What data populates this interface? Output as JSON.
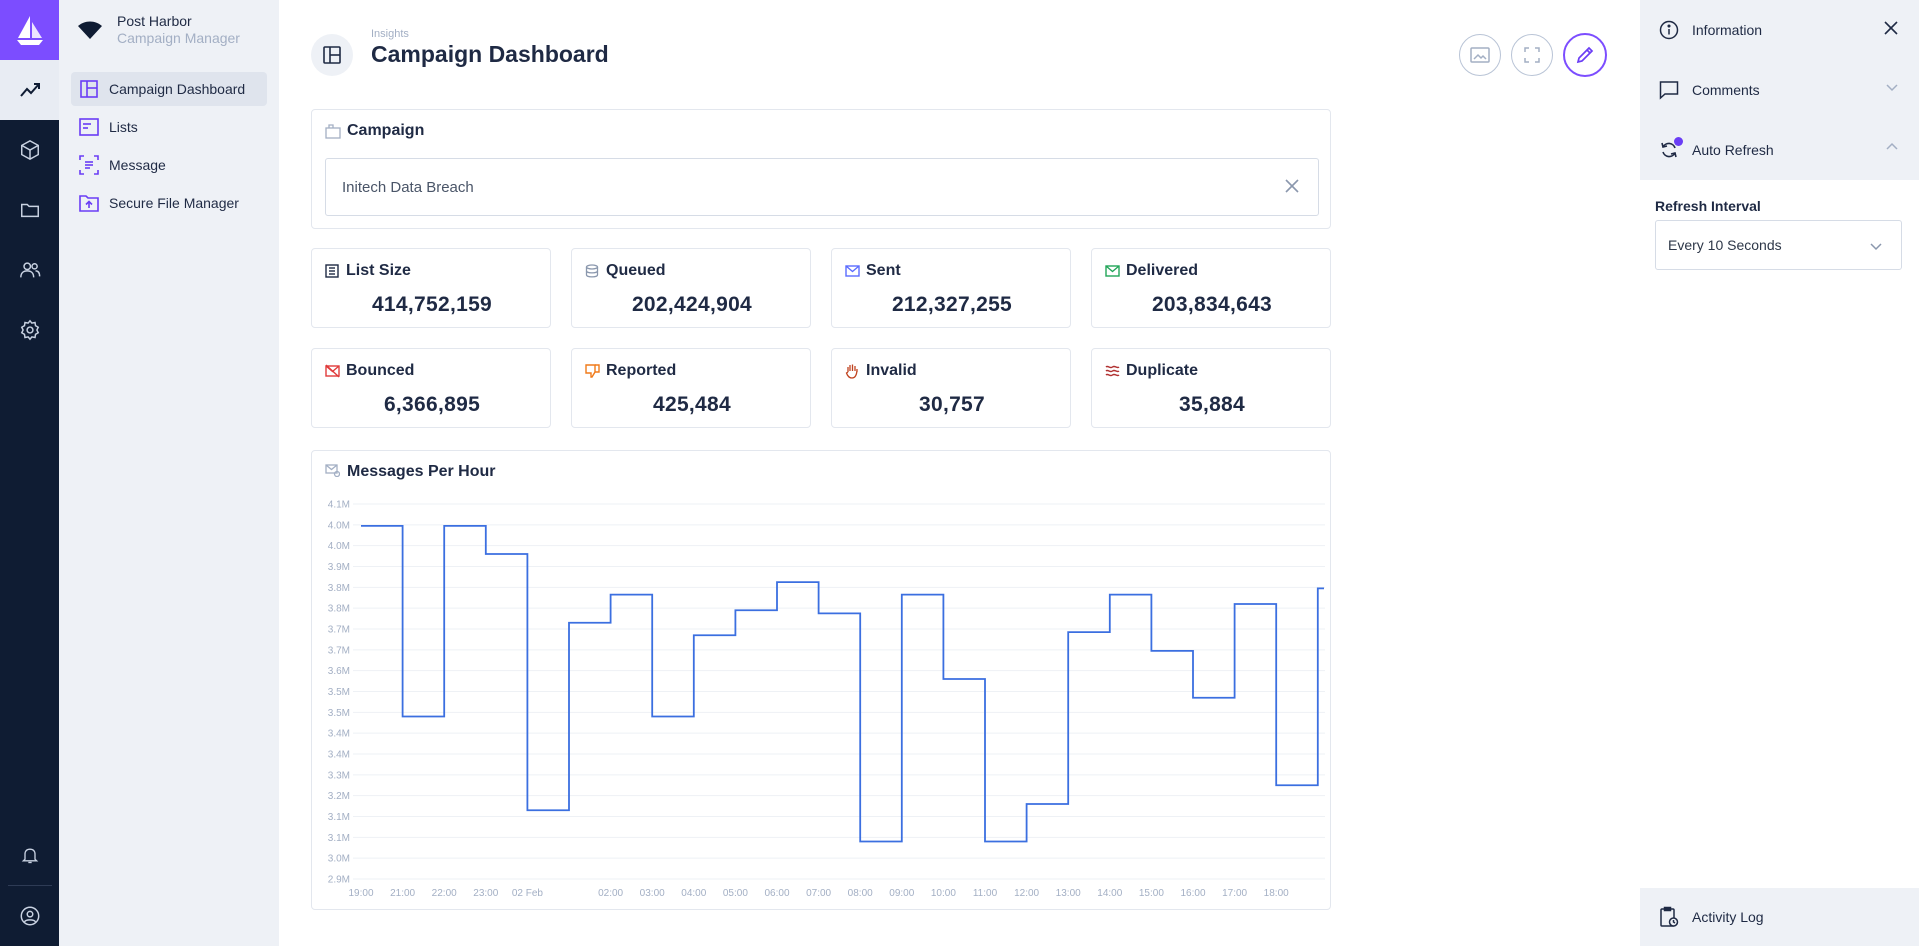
{
  "app": {
    "name": "Post Harbor",
    "subtitle": "Campaign Manager"
  },
  "nav": {
    "items": [
      {
        "label": "Campaign Dashboard",
        "icon": "layout-icon"
      },
      {
        "label": "Lists",
        "icon": "list-icon"
      },
      {
        "label": "Message",
        "icon": "message-icon"
      },
      {
        "label": "Secure File Manager",
        "icon": "folder-upload-icon"
      }
    ]
  },
  "header": {
    "breadcrumb": "Insights",
    "title": "Campaign Dashboard"
  },
  "campaign": {
    "title": "Campaign",
    "value": "Initech Data Breach"
  },
  "stats": [
    {
      "label": "List Size",
      "value": "414,752,159",
      "icon": "list-size-icon",
      "color": "#1f2a44"
    },
    {
      "label": "Queued",
      "value": "202,424,904",
      "icon": "database-icon",
      "color": "#8a97ad"
    },
    {
      "label": "Sent",
      "value": "212,327,255",
      "icon": "mail-sent-icon",
      "color": "#5b6cff"
    },
    {
      "label": "Delivered",
      "value": "203,834,643",
      "icon": "mail-check-icon",
      "color": "#22a559"
    },
    {
      "label": "Bounced",
      "value": "6,366,895",
      "icon": "mail-off-icon",
      "color": "#e03b3b"
    },
    {
      "label": "Reported",
      "value": "425,484",
      "icon": "thumbs-down-icon",
      "color": "#f07a1a"
    },
    {
      "label": "Invalid",
      "value": "30,757",
      "icon": "hand-icon",
      "color": "#c0431f"
    },
    {
      "label": "Duplicate",
      "value": "35,884",
      "icon": "duplicate-icon",
      "color": "#b03030"
    }
  ],
  "chart": {
    "title": "Messages Per Hour"
  },
  "chart_data": {
    "type": "line",
    "title": "Messages Per Hour",
    "y_tick_labels": [
      "4.1M",
      "4.0M",
      "4.0M",
      "3.9M",
      "3.8M",
      "3.8M",
      "3.7M",
      "3.7M",
      "3.6M",
      "3.5M",
      "3.5M",
      "3.4M",
      "3.4M",
      "3.3M",
      "3.2M",
      "3.1M",
      "3.1M",
      "3.0M",
      "2.9M"
    ],
    "x_tick_labels": [
      "19:00",
      "21:00",
      "22:00",
      "23:00",
      "02 Feb",
      "02:00",
      "03:00",
      "04:00",
      "05:00",
      "06:00",
      "07:00",
      "08:00",
      "09:00",
      "10:00",
      "11:00",
      "12:00",
      "13:00",
      "14:00",
      "15:00",
      "16:00",
      "17:00",
      "18:00"
    ],
    "ylim": [
      2.9,
      4.1
    ],
    "series": [
      {
        "color": "#3b6fe0",
        "step": true,
        "values": [
          4.03,
          3.42,
          4.03,
          3.94,
          3.12,
          3.72,
          3.81,
          3.42,
          3.68,
          3.76,
          3.85,
          3.75,
          3.02,
          3.81,
          3.54,
          3.02,
          3.14,
          3.69,
          3.81,
          3.63,
          3.48,
          3.78,
          3.2,
          3.83
        ]
      }
    ]
  },
  "right_panel": {
    "information": "Information",
    "comments": "Comments",
    "auto_refresh": "Auto Refresh",
    "refresh_label": "Refresh Interval",
    "refresh_value": "Every 10 Seconds",
    "activity_log": "Activity Log"
  }
}
